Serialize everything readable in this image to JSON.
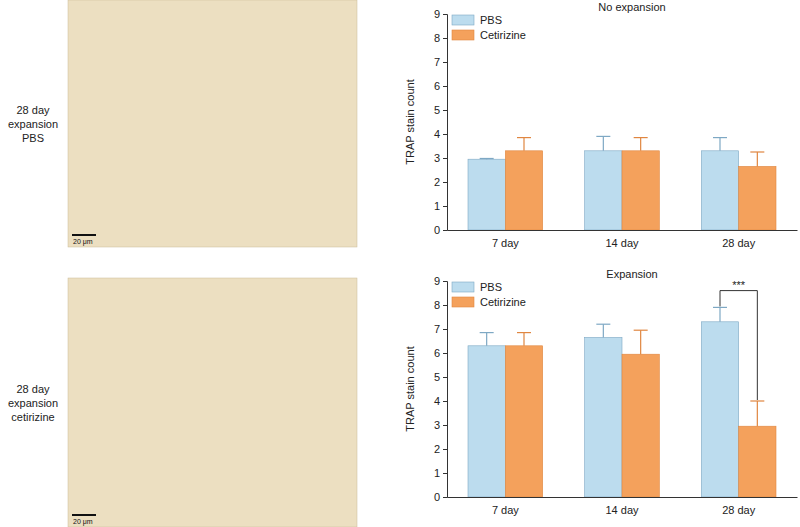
{
  "chart_data": [
    {
      "type": "bar",
      "title": "No expansion",
      "y_label": "TRAP stain count",
      "categories": [
        "7 day",
        "14 day",
        "28 day"
      ],
      "series": [
        {
          "name": "PBS",
          "color": "#bcdcee",
          "values": [
            2.95,
            3.3,
            3.3
          ],
          "errors": [
            0.03,
            0.6,
            0.55
          ]
        },
        {
          "name": "Cetirizine",
          "color": "#f4a15c",
          "values": [
            3.3,
            3.3,
            2.65
          ],
          "errors": [
            0.55,
            0.55,
            0.6
          ]
        }
      ],
      "ylim": [
        0,
        9
      ],
      "yticks": [
        0,
        1,
        2,
        3,
        4,
        5,
        6,
        7,
        8,
        9
      ],
      "legend": "upper left"
    },
    {
      "type": "bar",
      "title": "Expansion",
      "y_label": "TRAP stain count",
      "categories": [
        "7 day",
        "14 day",
        "28 day"
      ],
      "series": [
        {
          "name": "PBS",
          "color": "#bcdcee",
          "values": [
            6.3,
            6.65,
            7.3
          ],
          "errors": [
            0.55,
            0.55,
            0.6
          ]
        },
        {
          "name": "Cetirizine",
          "color": "#f4a15c",
          "values": [
            6.3,
            5.95,
            2.95
          ],
          "errors": [
            0.55,
            1.0,
            1.05
          ]
        }
      ],
      "ylim": [
        0,
        9
      ],
      "yticks": [
        0,
        1,
        2,
        3,
        4,
        5,
        6,
        7,
        8,
        9
      ],
      "legend": "upper left",
      "annotations": [
        {
          "text": "***",
          "category": "28 day",
          "y": 8.6
        }
      ]
    }
  ],
  "images": [
    {
      "label": [
        "28 day",
        "expansion",
        "PBS"
      ],
      "scale_bar": "20 μm"
    },
    {
      "label": [
        "28 day",
        "expansion",
        "cetirizine"
      ],
      "scale_bar": "20 μm"
    }
  ]
}
